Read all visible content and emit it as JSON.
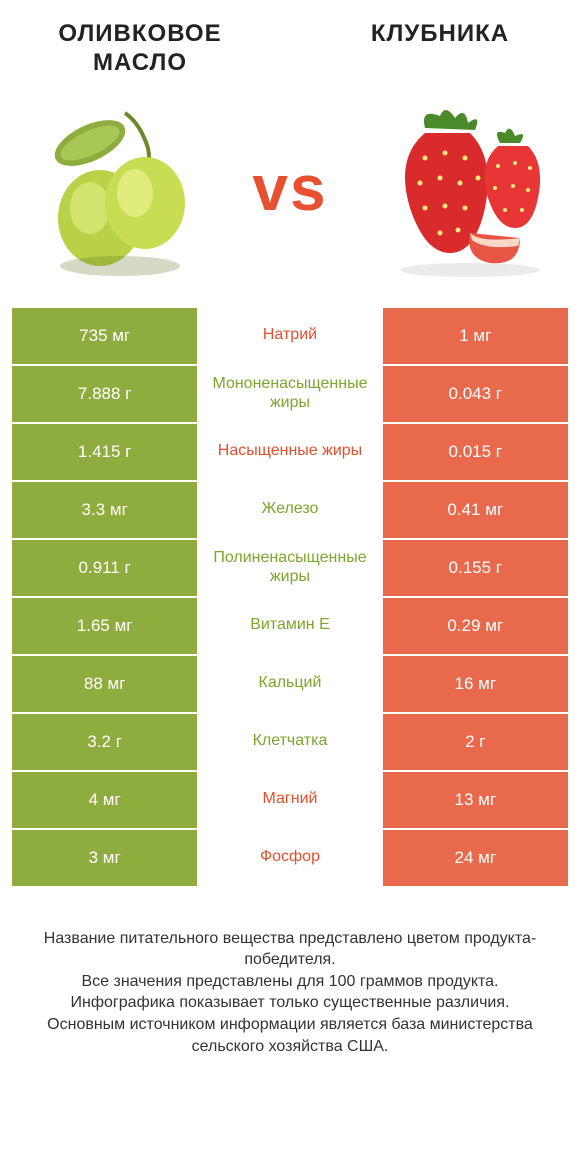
{
  "colors": {
    "left": "#8fad3e",
    "right": "#e8694c",
    "vs": "#e8512f",
    "mid_green": "#7ca52e",
    "mid_red": "#e24f2e"
  },
  "header": {
    "left_title": "Оливковое масло",
    "right_title": "Клубника",
    "vs": "vs"
  },
  "rows": [
    {
      "left": "735 мг",
      "mid": "Натрий",
      "right": "1 мг",
      "winner": "red"
    },
    {
      "left": "7.888 г",
      "mid": "Мононенасыщенные жиры",
      "right": "0.043 г",
      "winner": "green"
    },
    {
      "left": "1.415 г",
      "mid": "Насыщенные жиры",
      "right": "0.015 г",
      "winner": "red"
    },
    {
      "left": "3.3 мг",
      "mid": "Железо",
      "right": "0.41 мг",
      "winner": "green"
    },
    {
      "left": "0.911 г",
      "mid": "Полиненасыщенные жиры",
      "right": "0.155 г",
      "winner": "green"
    },
    {
      "left": "1.65 мг",
      "mid": "Витамин E",
      "right": "0.29 мг",
      "winner": "green"
    },
    {
      "left": "88 мг",
      "mid": "Кальций",
      "right": "16 мг",
      "winner": "green"
    },
    {
      "left": "3.2 г",
      "mid": "Клетчатка",
      "right": "2 г",
      "winner": "green"
    },
    {
      "left": "4 мг",
      "mid": "Магний",
      "right": "13 мг",
      "winner": "red"
    },
    {
      "left": "3 мг",
      "mid": "Фосфор",
      "right": "24 мг",
      "winner": "red"
    }
  ],
  "footnote": "Название питательного вещества представлено цветом продукта-победителя.\nВсе значения представлены для 100 граммов продукта.\nИнфографика показывает только существенные различия.\nОсновным источником информации является база министерства сельского хозяйства США."
}
